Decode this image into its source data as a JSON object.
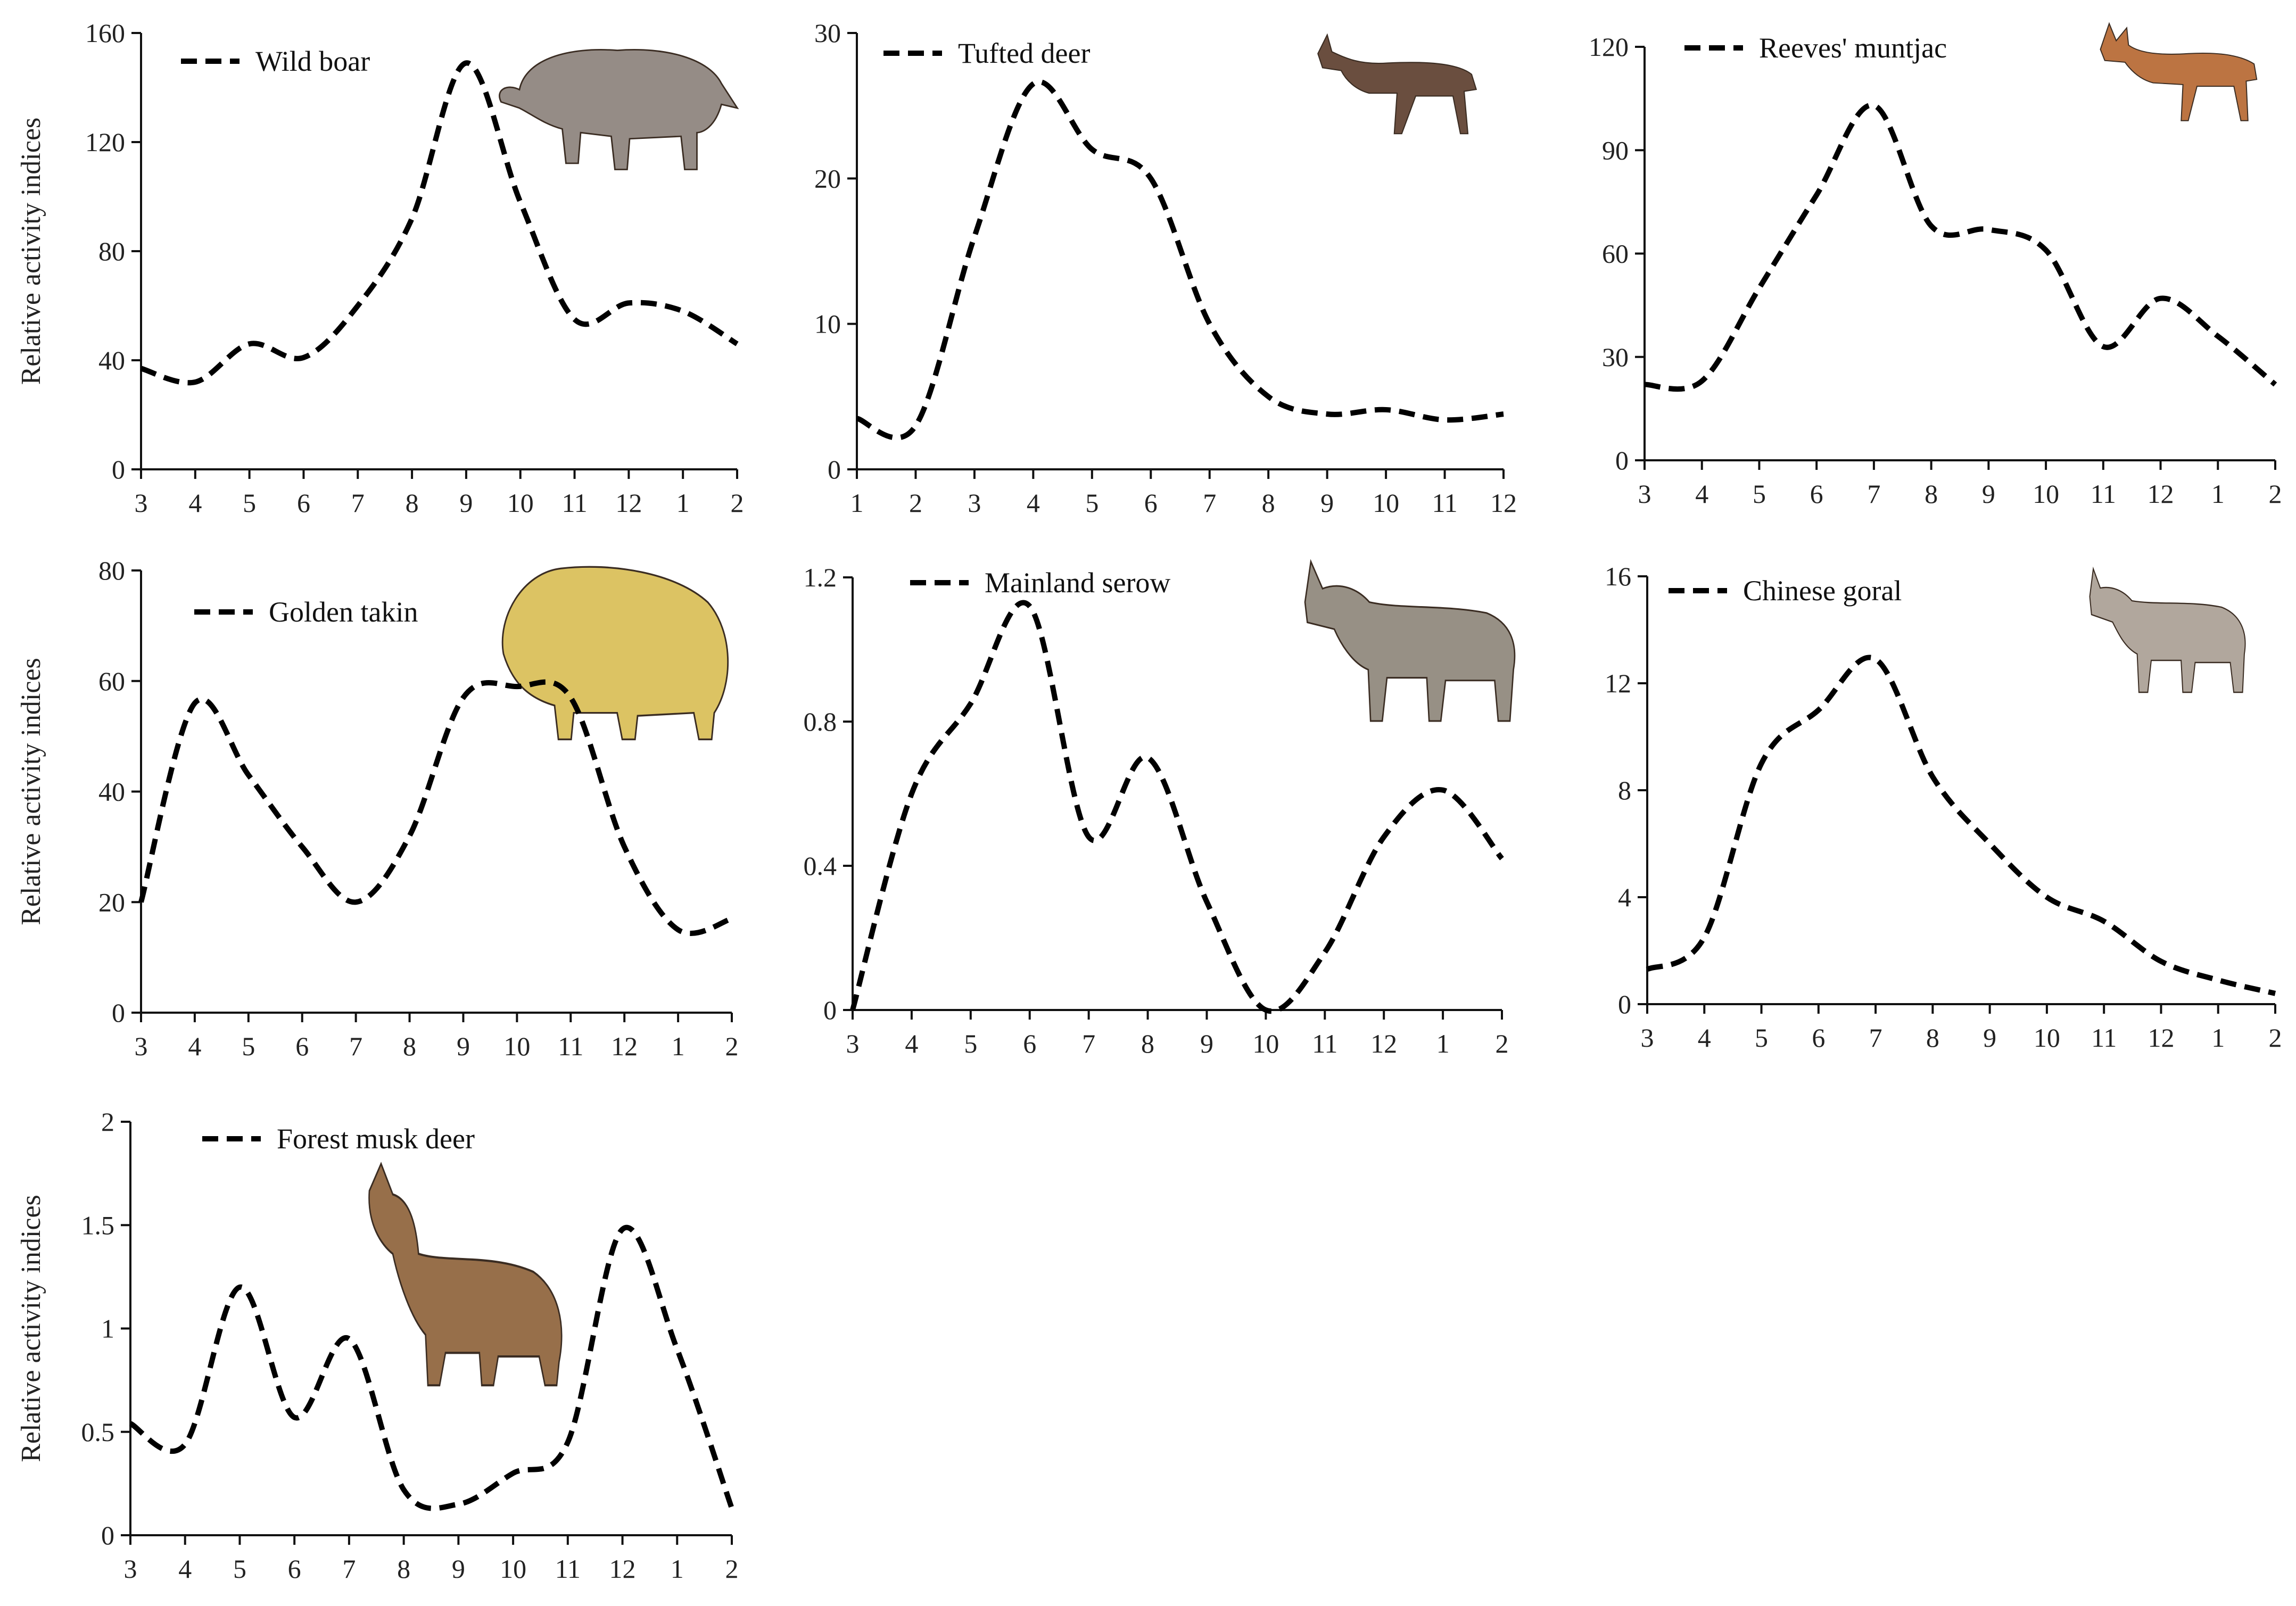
{
  "chart_data": [
    {
      "type": "line",
      "legend": "Wild boar",
      "ylabel": "Relative activity indices",
      "x": [
        "3",
        "4",
        "5",
        "6",
        "7",
        "8",
        "9",
        "10",
        "11",
        "12",
        "1",
        "2"
      ],
      "y": [
        37,
        32,
        46,
        41,
        60,
        92,
        149,
        98,
        55,
        61,
        58,
        46
      ],
      "yticks": [
        "0",
        "40",
        "80",
        "120",
        "160"
      ],
      "ylim": [
        0,
        160
      ],
      "illustration": "wild-boar"
    },
    {
      "type": "line",
      "legend": "Tufted deer",
      "ylabel": "",
      "x": [
        "1",
        "2",
        "3",
        "4",
        "5",
        "6",
        "7",
        "8",
        "9",
        "10",
        "11",
        "12"
      ],
      "y": [
        3.5,
        3,
        16,
        26.5,
        22,
        20,
        10,
        5,
        3.8,
        4.1,
        3.4,
        3.8
      ],
      "yticks": [
        "0",
        "10",
        "20",
        "30"
      ],
      "ylim": [
        0,
        30
      ],
      "illustration": "tufted-deer"
    },
    {
      "type": "line",
      "legend": "Reeves' muntjac",
      "ylabel": "",
      "x": [
        "3",
        "4",
        "5",
        "6",
        "7",
        "8",
        "9",
        "10",
        "11",
        "12",
        "1",
        "2"
      ],
      "y": [
        22,
        23,
        50,
        77,
        103,
        68,
        67,
        61,
        33,
        47,
        36,
        22
      ],
      "yticks": [
        "0",
        "30",
        "60",
        "90",
        "120"
      ],
      "ylim": [
        0,
        120
      ],
      "illustration": "reeves-muntjac"
    },
    {
      "type": "line",
      "legend": "Golden takin",
      "ylabel": "Relative activity indices",
      "x": [
        "3",
        "4",
        "5",
        "6",
        "7",
        "8",
        "9",
        "10",
        "11",
        "12",
        "1",
        "2"
      ],
      "y": [
        20,
        56,
        43,
        30,
        20,
        32,
        57,
        59,
        57,
        30,
        15,
        17
      ],
      "yticks": [
        "0",
        "20",
        "40",
        "60",
        "80"
      ],
      "ylim": [
        0,
        80
      ],
      "illustration": "golden-takin"
    },
    {
      "type": "line",
      "legend": "Mainland serow",
      "ylabel": "",
      "x": [
        "3",
        "4",
        "5",
        "6",
        "7",
        "8",
        "9",
        "10",
        "11",
        "12",
        "1",
        "2"
      ],
      "y": [
        0,
        0.6,
        0.85,
        1.12,
        0.48,
        0.7,
        0.3,
        0,
        0.16,
        0.48,
        0.61,
        0.42
      ],
      "yticks": [
        "0",
        "0.4",
        "0.8",
        "1.2"
      ],
      "ylim": [
        0,
        1.2
      ],
      "illustration": "mainland-serow"
    },
    {
      "type": "line",
      "legend": "Chinese goral",
      "ylabel": "",
      "x": [
        "3",
        "4",
        "5",
        "6",
        "7",
        "8",
        "9",
        "10",
        "11",
        "12",
        "1",
        "2"
      ],
      "y": [
        1.3,
        2.5,
        9,
        11,
        12.9,
        8.5,
        6,
        4,
        3.1,
        1.6,
        0.9,
        0.4
      ],
      "yticks": [
        "0",
        "4",
        "8",
        "12",
        "16"
      ],
      "ylim": [
        0,
        16
      ],
      "illustration": "chinese-goral"
    },
    {
      "type": "line",
      "legend": "Forest musk deer",
      "ylabel": "Relative activity indices",
      "x": [
        "3",
        "4",
        "5",
        "6",
        "7",
        "8",
        "9",
        "10",
        "11",
        "12",
        "1",
        "2"
      ],
      "y": [
        0.54,
        0.44,
        1.2,
        0.57,
        0.95,
        0.22,
        0.15,
        0.3,
        0.45,
        1.48,
        0.9,
        0.13
      ],
      "yticks": [
        "0",
        "0.5",
        "1",
        "1.5",
        "2"
      ],
      "ylim": [
        0,
        2
      ],
      "illustration": "forest-musk-deer"
    }
  ]
}
